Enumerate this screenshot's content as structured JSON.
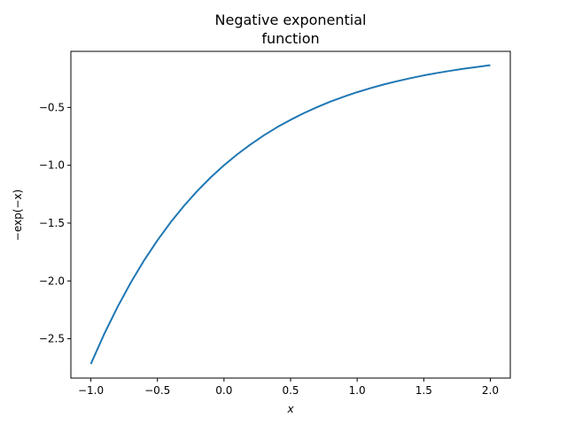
{
  "chart_data": {
    "type": "line",
    "title_lines": [
      "Negative exponential",
      "function"
    ],
    "xlabel": "x",
    "ylabel": "−exp(−x)",
    "xlim": [
      -1.15,
      2.15
    ],
    "ylim": [
      -2.84,
      -0.015
    ],
    "x_ticks": [
      -1.0,
      -0.5,
      0.0,
      0.5,
      1.0,
      1.5,
      2.0
    ],
    "x_tick_labels": [
      "−1.0",
      "−0.5",
      "0.0",
      "0.5",
      "1.0",
      "1.5",
      "2.0"
    ],
    "y_ticks": [
      -2.5,
      -2.0,
      -1.5,
      -1.0,
      -0.5
    ],
    "y_tick_labels": [
      "−2.5",
      "−2.0",
      "−1.5",
      "−1.0",
      "−0.5"
    ],
    "grid": false,
    "series": [
      {
        "color": "#1f77b4",
        "x": [
          -1.0,
          -0.9,
          -0.8,
          -0.7,
          -0.6,
          -0.5,
          -0.4,
          -0.3,
          -0.2,
          -0.1,
          0.0,
          0.1,
          0.2,
          0.3,
          0.4,
          0.5,
          0.6,
          0.7,
          0.8,
          0.9,
          1.0,
          1.1,
          1.2,
          1.3,
          1.4,
          1.5,
          1.6,
          1.7,
          1.8,
          1.9,
          2.0
        ],
        "y": [
          -2.718,
          -2.46,
          -2.226,
          -2.014,
          -1.822,
          -1.649,
          -1.492,
          -1.35,
          -1.221,
          -1.105,
          -1.0,
          -0.905,
          -0.819,
          -0.741,
          -0.67,
          -0.607,
          -0.549,
          -0.497,
          -0.449,
          -0.407,
          -0.368,
          -0.333,
          -0.301,
          -0.273,
          -0.247,
          -0.223,
          -0.202,
          -0.183,
          -0.165,
          -0.15,
          -0.135
        ]
      }
    ]
  }
}
